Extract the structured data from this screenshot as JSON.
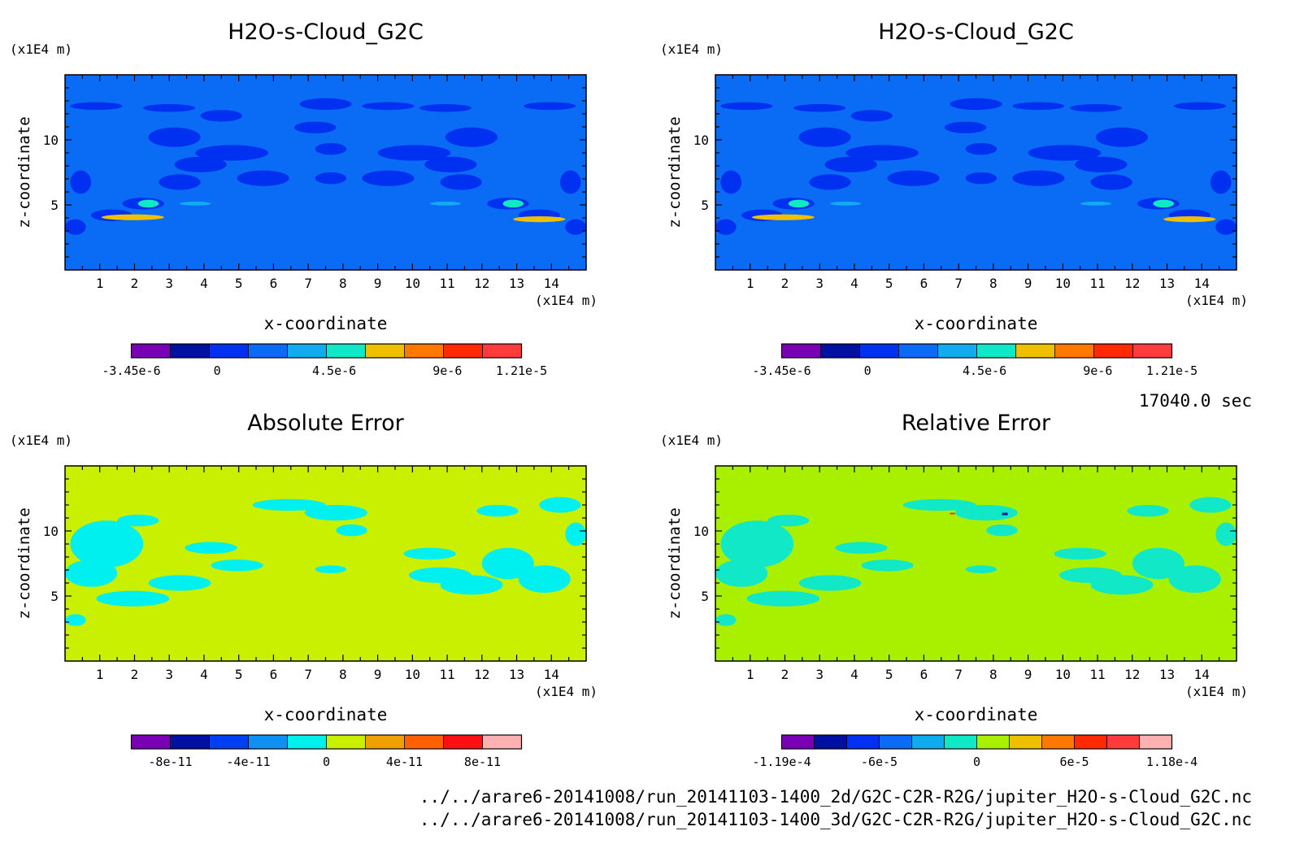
{
  "timestamp": "17040.0 sec",
  "files": [
    "../../arare6-20141008/run_20141103-1400_2d/G2C-C2R-R2G/jupiter_H2O-s-Cloud_G2C.nc",
    "../../arare6-20141008/run_20141103-1400_3d/G2C-C2R-R2G/jupiter_H2O-s-Cloud_G2C.nc"
  ],
  "chart_data": [
    {
      "type": "heatmap",
      "title": "H2O-s-Cloud_G2C",
      "xlabel": "x-coordinate",
      "ylabel": "z-coordinate",
      "x_unit": "(x1E4 m)",
      "y_unit": "(x1E4 m)",
      "xlim": [
        0,
        15
      ],
      "ylim": [
        0,
        15
      ],
      "xticks": [
        "1",
        "2",
        "3",
        "4",
        "5",
        "6",
        "7",
        "8",
        "9",
        "10",
        "11",
        "12",
        "13",
        "14"
      ],
      "yticks": [
        "5",
        "10"
      ],
      "background_color": "#0a6cf5",
      "colorbar": {
        "labels": [
          "-3.45e-6",
          "0",
          "4.5e-6",
          "9e-6",
          "1.21e-5"
        ],
        "colors": [
          "#7a00b4",
          "#0010a0",
          "#0030f0",
          "#0a6cf5",
          "#12aaf0",
          "#10e8c8",
          "#f0c000",
          "#ff7800",
          "#ff2a00",
          "#ff3c3c"
        ]
      }
    },
    {
      "type": "heatmap",
      "title": "H2O-s-Cloud_G2C",
      "xlabel": "x-coordinate",
      "ylabel": "z-coordinate",
      "x_unit": "(x1E4 m)",
      "y_unit": "(x1E4 m)",
      "xlim": [
        0,
        15
      ],
      "ylim": [
        0,
        15
      ],
      "xticks": [
        "1",
        "2",
        "3",
        "4",
        "5",
        "6",
        "7",
        "8",
        "9",
        "10",
        "11",
        "12",
        "13",
        "14"
      ],
      "yticks": [
        "5",
        "10"
      ],
      "background_color": "#0a6cf5",
      "colorbar": {
        "labels": [
          "-3.45e-6",
          "0",
          "4.5e-6",
          "9e-6",
          "1.21e-5"
        ],
        "colors": [
          "#7a00b4",
          "#0010a0",
          "#0030f0",
          "#0a6cf5",
          "#12aaf0",
          "#10e8c8",
          "#f0c000",
          "#ff7800",
          "#ff2a00",
          "#ff3c3c"
        ]
      }
    },
    {
      "type": "heatmap",
      "title": "Absolute Error",
      "xlabel": "x-coordinate",
      "ylabel": "z-coordinate",
      "x_unit": "(x1E4 m)",
      "y_unit": "(x1E4 m)",
      "xlim": [
        0,
        15
      ],
      "ylim": [
        0,
        15
      ],
      "xticks": [
        "1",
        "2",
        "3",
        "4",
        "5",
        "6",
        "7",
        "8",
        "9",
        "10",
        "11",
        "12",
        "13",
        "14"
      ],
      "yticks": [
        "5",
        "10"
      ],
      "background_color": "#c8f000",
      "colorbar": {
        "labels": [
          "-8e-11",
          "-4e-11",
          "0",
          "4e-11",
          "8e-11"
        ],
        "colors": [
          "#7a00b4",
          "#0010a0",
          "#0040f0",
          "#1090f0",
          "#00f0f0",
          "#c8f000",
          "#f0a000",
          "#ff6000",
          "#ff1010",
          "#ffb0b0"
        ]
      }
    },
    {
      "type": "heatmap",
      "title": "Relative Error",
      "xlabel": "x-coordinate",
      "ylabel": "z-coordinate",
      "x_unit": "(x1E4 m)",
      "y_unit": "(x1E4 m)",
      "xlim": [
        0,
        15
      ],
      "ylim": [
        0,
        15
      ],
      "xticks": [
        "1",
        "2",
        "3",
        "4",
        "5",
        "6",
        "7",
        "8",
        "9",
        "10",
        "11",
        "12",
        "13",
        "14"
      ],
      "yticks": [
        "5",
        "10"
      ],
      "background_color": "#a8f000",
      "colorbar": {
        "labels": [
          "-1.19e-4",
          "-6e-5",
          "0",
          "6e-5",
          "1.18e-4"
        ],
        "colors": [
          "#7a00b4",
          "#0010a0",
          "#0030f0",
          "#0a6cf5",
          "#10aaf0",
          "#10e8c8",
          "#a8f000",
          "#f0c000",
          "#ff7800",
          "#ff2a00",
          "#ff3c3c",
          "#ffb0b0"
        ]
      }
    }
  ]
}
